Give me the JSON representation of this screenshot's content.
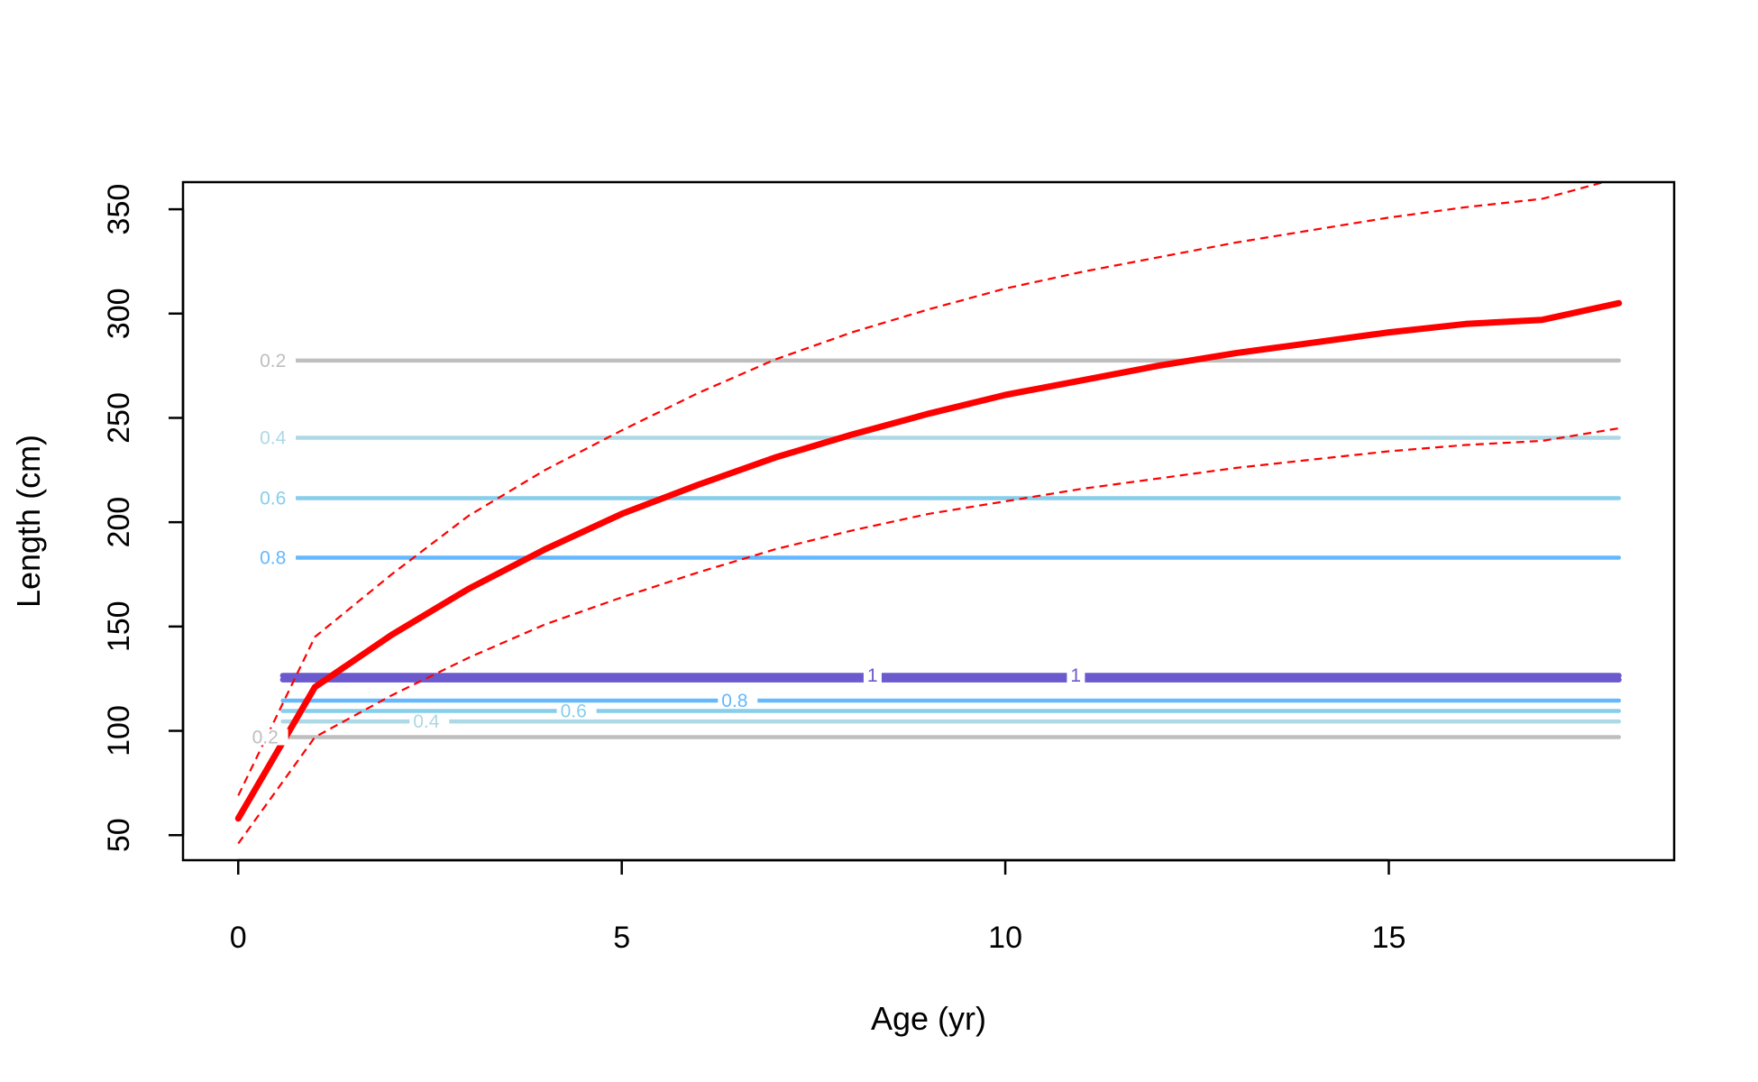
{
  "chart_data": {
    "type": "line",
    "title": "",
    "xlabel": "Age (yr)",
    "ylabel": "Length (cm)",
    "xlim": [
      -0.72,
      18.72
    ],
    "ylim": [
      38,
      363
    ],
    "xticks": [
      0,
      5,
      10,
      15
    ],
    "yticks": [
      50,
      100,
      150,
      200,
      250,
      300,
      350
    ],
    "grid": false,
    "legend": "none",
    "series": [
      {
        "style": "solid-thick",
        "color": "#ff0000",
        "x": [
          0,
          1,
          2,
          3,
          4,
          5,
          6,
          7,
          8,
          9,
          10,
          11,
          12,
          13,
          14,
          15,
          16,
          17,
          18
        ],
        "y": [
          58,
          121,
          146,
          168,
          187,
          204,
          218,
          231,
          242,
          252,
          261,
          268,
          275,
          281,
          286,
          291,
          295,
          297,
          305
        ]
      },
      {
        "style": "dashed",
        "color": "#ff0000",
        "x": [
          0,
          1,
          2,
          3,
          4,
          5,
          6,
          7,
          8,
          9,
          10,
          11,
          12,
          13,
          14,
          15,
          16,
          17,
          18
        ],
        "y": [
          69,
          145,
          175,
          203,
          225,
          244,
          262,
          278,
          291,
          302,
          312,
          320,
          327,
          334,
          340,
          346,
          351,
          355,
          365
        ]
      },
      {
        "style": "dashed",
        "color": "#ff0000",
        "x": [
          0,
          1,
          2,
          3,
          4,
          5,
          6,
          7,
          8,
          9,
          10,
          11,
          12,
          13,
          14,
          15,
          16,
          17,
          18
        ],
        "y": [
          46,
          97,
          117,
          135,
          151,
          164,
          176,
          187,
          196,
          204,
          210,
          216,
          221,
          226,
          230,
          234,
          237,
          239,
          245
        ]
      }
    ],
    "contours": [
      {
        "label": "0.2",
        "y": 277.5,
        "color": "#bebebe",
        "x_start": 0.58,
        "x_end": 18,
        "label_x": 0.28
      },
      {
        "label": "0.4",
        "y": 240.5,
        "color": "#add8e6",
        "x_start": 0.58,
        "x_end": 18,
        "label_x": 0.28
      },
      {
        "label": "0.6",
        "y": 211.5,
        "color": "#87ceeb",
        "x_start": 0.58,
        "x_end": 18,
        "label_x": 0.28
      },
      {
        "label": "0.8",
        "y": 183,
        "color": "#63b8ff",
        "x_start": 0.58,
        "x_end": 18,
        "label_x": 0.28
      },
      {
        "label": "1",
        "y": 126.5,
        "color": "#6a5acd",
        "x_start": 0.58,
        "x_end": 18,
        "label_x": 8.2,
        "label2": "1",
        "label2_x": 10.85,
        "thick": true
      },
      {
        "label": "1",
        "y": 124.5,
        "color": "#6a5acd",
        "x_start": 0.58,
        "x_end": 18,
        "label_x": 8.2,
        "thick": true
      },
      {
        "label": "0.8",
        "y": 114.5,
        "color": "#63b8ff",
        "x_start": 0.58,
        "x_end": 18,
        "label_x": 6.3
      },
      {
        "label": "0.6",
        "y": 109.5,
        "color": "#87ceeb",
        "x_start": 0.58,
        "x_end": 18,
        "label_x": 4.2
      },
      {
        "label": "0.4",
        "y": 104.5,
        "color": "#add8e6",
        "x_start": 0.58,
        "x_end": 18,
        "label_x": 2.28
      },
      {
        "label": "0.2",
        "y": 97,
        "color": "#bebebe",
        "x_start": 0.58,
        "x_end": 18,
        "label_x": 0.18
      }
    ]
  }
}
